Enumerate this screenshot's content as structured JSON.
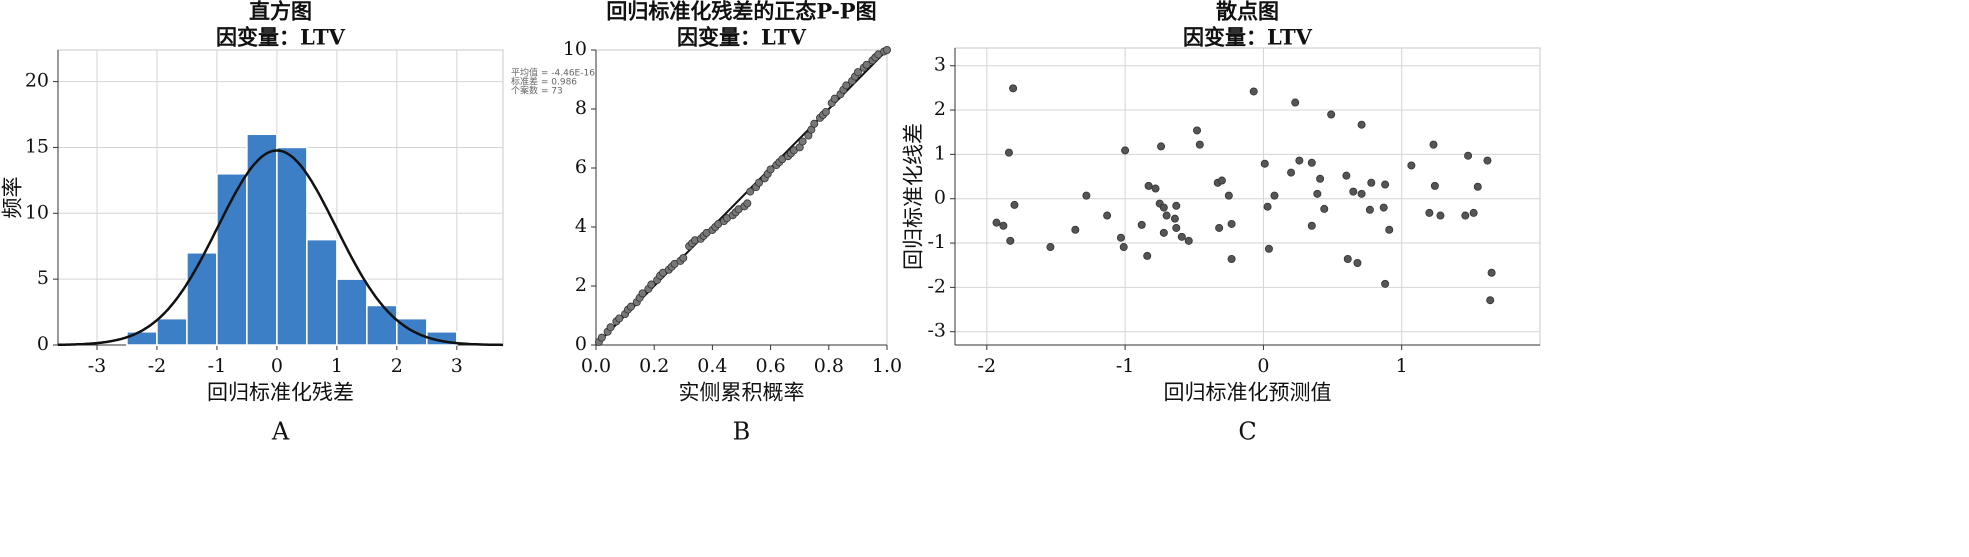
{
  "chart_data": [
    {
      "type": "histogram",
      "title": "直方图",
      "subtitle": "因变量：LTV",
      "x_label": "回归标准化残差",
      "y_label": "频率",
      "panel_label": "A",
      "bins": [
        -2.5,
        -2,
        -1.5,
        -1,
        -0.5,
        0,
        0.5,
        1,
        1.5,
        2,
        2.5,
        3
      ],
      "values": [
        1,
        2,
        7,
        13,
        16,
        15,
        8,
        5,
        3,
        2,
        1
      ],
      "color": "#3d7fc7",
      "curve_color": "#111111",
      "stats": [
        {
          "text": "平均值 = -4.46E-16",
          "value": -4.46e-16
        },
        {
          "text": "标准差 = 0.986",
          "value": 0.986
        },
        {
          "text": "个案数 = 73",
          "value": 73
        }
      ],
      "xlim": [
        -3.65,
        3.77
      ],
      "xticks": [
        -3,
        -2,
        -1,
        0,
        1,
        2,
        3
      ],
      "ylim": [
        0,
        22.4
      ],
      "yticks": [
        0,
        5,
        10,
        15,
        20
      ],
      "grid": true
    },
    {
      "type": "scatter",
      "title": "回归标准化残差的正态P-P图",
      "subtitle": "因变量：LTV",
      "x_label": "实侧累积概率",
      "panel_label": "B",
      "x": [
        0.01,
        0.02,
        0.04,
        0.05,
        0.07,
        0.08,
        0.1,
        0.11,
        0.12,
        0.14,
        0.15,
        0.16,
        0.18,
        0.19,
        0.21,
        0.22,
        0.23,
        0.25,
        0.26,
        0.27,
        0.29,
        0.3,
        0.32,
        0.33,
        0.34,
        0.36,
        0.37,
        0.38,
        0.4,
        0.41,
        0.42,
        0.44,
        0.45,
        0.47,
        0.48,
        0.49,
        0.51,
        0.52,
        0.53,
        0.55,
        0.56,
        0.58,
        0.59,
        0.6,
        0.62,
        0.63,
        0.64,
        0.66,
        0.67,
        0.68,
        0.7,
        0.71,
        0.73,
        0.74,
        0.75,
        0.77,
        0.78,
        0.79,
        0.81,
        0.82,
        0.84,
        0.85,
        0.86,
        0.88,
        0.89,
        0.9,
        0.92,
        0.93,
        0.95,
        0.96,
        0.97,
        0.99,
        1.0
      ],
      "values": [
        0.1,
        0.25,
        0.45,
        0.6,
        0.8,
        0.9,
        1.05,
        1.2,
        1.3,
        1.45,
        1.6,
        1.75,
        1.9,
        2.05,
        2.2,
        2.35,
        2.45,
        2.55,
        2.65,
        2.75,
        2.85,
        2.95,
        3.35,
        3.45,
        3.55,
        3.6,
        3.7,
        3.8,
        3.9,
        4.0,
        4.1,
        4.2,
        4.3,
        4.4,
        4.5,
        4.6,
        4.7,
        4.8,
        5.2,
        5.35,
        5.5,
        5.65,
        5.8,
        5.95,
        6.1,
        6.2,
        6.3,
        6.4,
        6.5,
        6.6,
        6.7,
        6.9,
        7.1,
        7.3,
        7.5,
        7.7,
        7.8,
        7.9,
        8.2,
        8.35,
        8.5,
        8.65,
        8.8,
        8.95,
        9.1,
        9.25,
        9.4,
        9.5,
        9.65,
        9.75,
        9.85,
        9.95,
        10.0
      ],
      "color": "#777777",
      "reference_line": {
        "x": [
          0,
          1
        ],
        "y": [
          0,
          10
        ]
      },
      "xlim": [
        0,
        1
      ],
      "xticks": [
        {
          "value": 0,
          "label": "0.0"
        },
        {
          "value": 0.2,
          "label": "0.2"
        },
        {
          "value": 0.4,
          "label": "0.4"
        },
        {
          "value": 0.6,
          "label": "0.6"
        },
        {
          "value": 0.8,
          "label": "0.8"
        },
        {
          "value": 1,
          "label": "1.0"
        }
      ],
      "ylim": [
        0,
        10
      ],
      "yticks": [
        0,
        2,
        4,
        6,
        8,
        10
      ],
      "grid": false
    },
    {
      "type": "scatter",
      "title": "散点图",
      "subtitle": "因变量：LTV",
      "x_label": "回归标准化预测值",
      "y_label": "回归标准化线差",
      "panel_label": "C",
      "x": [
        -1.93,
        -1.88,
        -1.84,
        -1.83,
        -1.81,
        -1.8,
        -1.54,
        -1.36,
        -1.28,
        -1.13,
        -1.03,
        -1.01,
        -1.0,
        -0.88,
        -0.84,
        -0.83,
        -0.78,
        -0.75,
        -0.74,
        -0.72,
        -0.72,
        -0.7,
        -0.64,
        -0.63,
        -0.63,
        -0.59,
        -0.54,
        -0.48,
        -0.46,
        -0.33,
        -0.32,
        -0.3,
        -0.25,
        -0.23,
        -0.23,
        -0.07,
        0.01,
        0.03,
        0.04,
        0.08,
        0.2,
        0.23,
        0.26,
        0.35,
        0.35,
        0.39,
        0.41,
        0.44,
        0.49,
        0.6,
        0.61,
        0.65,
        0.68,
        0.71,
        0.71,
        0.77,
        0.78,
        0.87,
        0.88,
        0.88,
        0.91,
        1.07,
        1.2,
        1.23,
        1.24,
        1.28,
        1.46,
        1.48,
        1.52,
        1.55,
        1.62,
        1.64,
        1.65
      ],
      "values": [
        -0.54,
        -0.61,
        1.04,
        -0.95,
        2.49,
        -0.14,
        -1.09,
        -0.7,
        0.07,
        -0.38,
        -0.88,
        -1.09,
        1.09,
        -0.59,
        -1.29,
        0.29,
        0.23,
        -0.11,
        1.18,
        -0.2,
        -0.77,
        -0.38,
        -0.45,
        -0.66,
        -0.16,
        -0.86,
        -0.95,
        1.54,
        1.22,
        0.36,
        -0.66,
        0.41,
        0.07,
        -0.57,
        -1.36,
        2.42,
        0.79,
        -0.18,
        -1.13,
        0.07,
        0.59,
        2.17,
        0.86,
        0.81,
        -0.61,
        0.11,
        0.45,
        -0.23,
        1.9,
        0.52,
        -1.36,
        0.16,
        -1.45,
        1.67,
        0.11,
        -0.25,
        0.36,
        -0.2,
        0.32,
        -1.92,
        -0.7,
        0.75,
        -0.32,
        1.22,
        0.29,
        -0.38,
        -0.38,
        0.97,
        -0.32,
        0.27,
        0.86,
        -2.29,
        -1.67
      ],
      "color": "#555555",
      "xlim": [
        -2.23,
        2.0
      ],
      "xticks": [
        -2,
        -1,
        0,
        1
      ],
      "ylim": [
        -3.3,
        3.4
      ],
      "yticks": [
        -3,
        -2,
        -1,
        0,
        1,
        2,
        3
      ],
      "grid": true
    }
  ]
}
